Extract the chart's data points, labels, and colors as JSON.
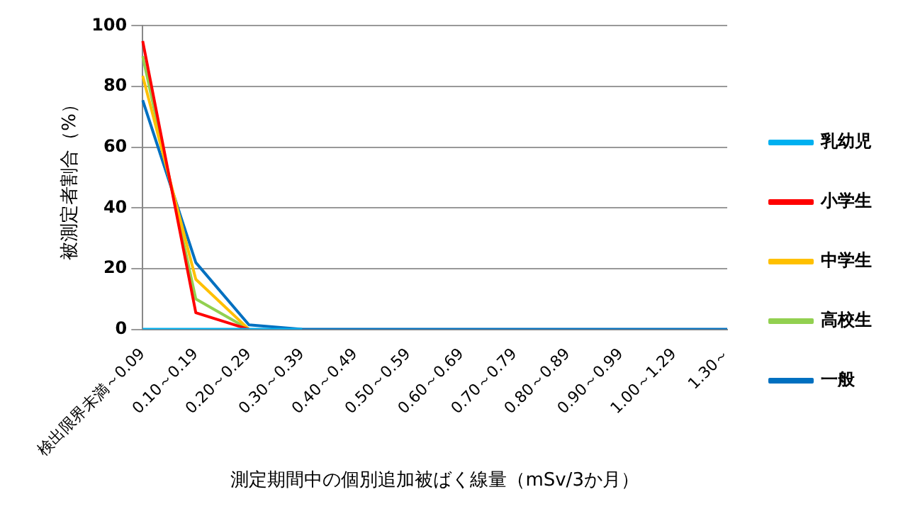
{
  "chart_data": {
    "type": "line",
    "xlabel": "測定期間中の個別追加被ばく線量（mSv/3か月）",
    "ylabel": "被測定者割合（%）",
    "categories": [
      "検出限界未満～0.09",
      "0.10～0.19",
      "0.20～0.29",
      "0.30～0.39",
      "0.40～0.49",
      "0.50～0.59",
      "0.60～0.69",
      "0.70～0.79",
      "0.80～0.89",
      "0.90～0.99",
      "1.00～1.29",
      "1.30～"
    ],
    "series": [
      {
        "name": "乳幼児",
        "color": "#00b0f0",
        "values": [
          0,
          0,
          0,
          0,
          null,
          null,
          null,
          null,
          null,
          null,
          null,
          null
        ]
      },
      {
        "name": "小学生",
        "color": "#ff0000",
        "values": [
          95,
          5.5,
          0,
          null,
          null,
          null,
          null,
          null,
          null,
          null,
          null,
          null
        ]
      },
      {
        "name": "中学生",
        "color": "#ffc000",
        "values": [
          83.5,
          16.5,
          0,
          null,
          null,
          null,
          null,
          null,
          null,
          null,
          null,
          null
        ]
      },
      {
        "name": "高校生",
        "color": "#92d050",
        "values": [
          90,
          10,
          0,
          null,
          null,
          null,
          null,
          null,
          null,
          null,
          null,
          null
        ]
      },
      {
        "name": "一般",
        "color": "#0070c0",
        "values": [
          75.5,
          22,
          1.5,
          0,
          0,
          0,
          0,
          0,
          0,
          0,
          0,
          0
        ]
      }
    ],
    "ylim": [
      0,
      100
    ],
    "yticks": [
      0,
      20,
      40,
      60,
      80,
      100
    ],
    "grid": "y",
    "legend": "right",
    "marker": "none",
    "line_style": "solid"
  }
}
